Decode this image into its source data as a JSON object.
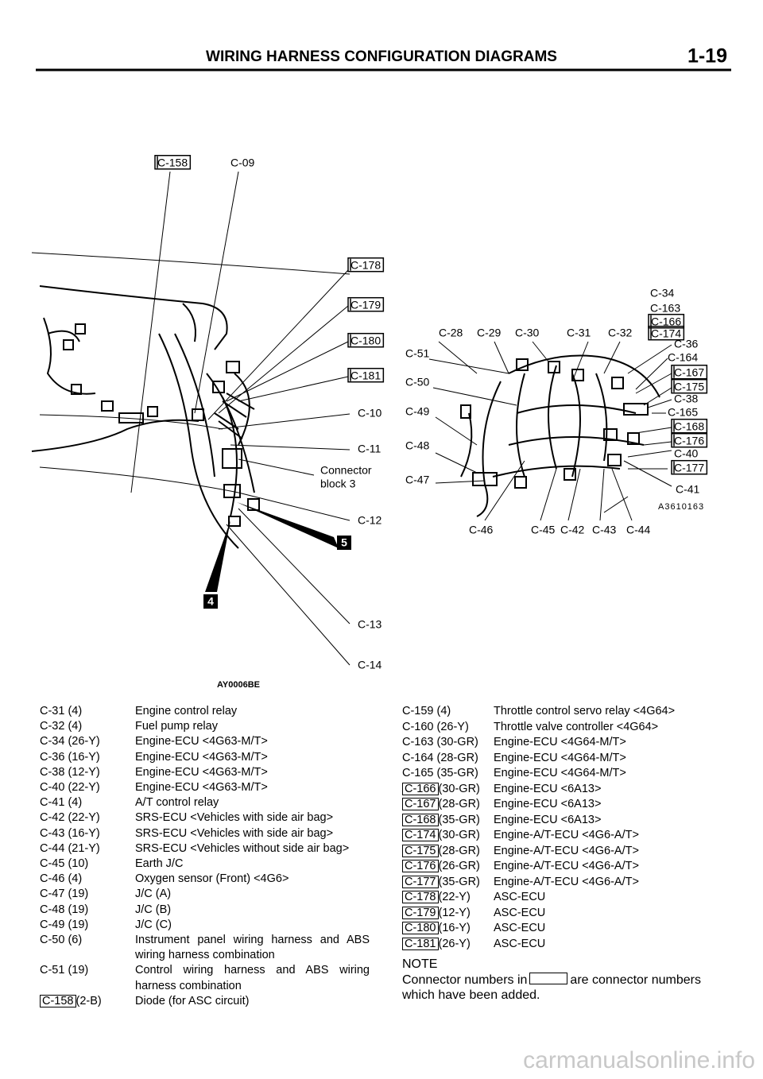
{
  "header": {
    "title": "WIRING HARNESS CONFIGURATION DIAGRAMS",
    "page": "1-19"
  },
  "diagram_left": {
    "labels": [
      {
        "text": "C-158",
        "boxed": true
      },
      {
        "text": "C-09"
      },
      {
        "text": "C-178",
        "boxed": true
      },
      {
        "text": "C-179",
        "boxed": true
      },
      {
        "text": "C-180",
        "boxed": true
      },
      {
        "text": "C-181",
        "boxed": true
      },
      {
        "text": "C-10"
      },
      {
        "text": "C-11"
      },
      {
        "text": "Connector"
      },
      {
        "text": "block 3"
      },
      {
        "text": "C-12"
      },
      {
        "text": "5"
      },
      {
        "text": "4"
      },
      {
        "text": "C-13"
      },
      {
        "text": "C-14"
      }
    ],
    "code": "AY0006BE"
  },
  "diagram_right": {
    "labels": [
      {
        "text": "C-34"
      },
      {
        "text": "C-163"
      },
      {
        "text": "C-166",
        "boxed": true
      },
      {
        "text": "C-174",
        "boxed": true
      },
      {
        "text": "C-28"
      },
      {
        "text": "C-29"
      },
      {
        "text": "C-30"
      },
      {
        "text": "C-31"
      },
      {
        "text": "C-32"
      },
      {
        "text": "C-36"
      },
      {
        "text": "C-164"
      },
      {
        "text": "C-167",
        "boxed": true
      },
      {
        "text": "C-175",
        "boxed": true
      },
      {
        "text": "C-38"
      },
      {
        "text": "C-165"
      },
      {
        "text": "C-168",
        "boxed": true
      },
      {
        "text": "C-176",
        "boxed": true
      },
      {
        "text": "C-40"
      },
      {
        "text": "C-177",
        "boxed": true
      },
      {
        "text": "C-41"
      },
      {
        "text": "C-51"
      },
      {
        "text": "C-50"
      },
      {
        "text": "C-49"
      },
      {
        "text": "C-48"
      },
      {
        "text": "C-47"
      },
      {
        "text": "C-46"
      },
      {
        "text": "C-45"
      },
      {
        "text": "C-42"
      },
      {
        "text": "C-43"
      },
      {
        "text": "C-44"
      }
    ],
    "code": "A3610163"
  },
  "lists": {
    "left": {
      "rows": [
        {
          "id": "C-31",
          "spec": "(4)",
          "desc": "Engine control relay"
        },
        {
          "id": "C-32",
          "spec": "(4)",
          "desc": "Fuel pump relay"
        },
        {
          "id": "C-34",
          "spec": "(26-Y)",
          "desc": "Engine-ECU <4G63-M/T>"
        },
        {
          "id": "C-36",
          "spec": "(16-Y)",
          "desc": "Engine-ECU <4G63-M/T>"
        },
        {
          "id": "C-38",
          "spec": "(12-Y)",
          "desc": "Engine-ECU <4G63-M/T>"
        },
        {
          "id": "C-40",
          "spec": "(22-Y)",
          "desc": "Engine-ECU <4G63-M/T>"
        },
        {
          "id": "C-41",
          "spec": "(4)",
          "desc": "A/T control relay"
        },
        {
          "id": "C-42",
          "spec": "(22-Y)",
          "desc": "SRS-ECU <Vehicles with side air bag>"
        },
        {
          "id": "C-43",
          "spec": "(16-Y)",
          "desc": "SRS-ECU <Vehicles with side air bag>"
        },
        {
          "id": "C-44",
          "spec": "(21-Y)",
          "desc": "SRS-ECU <Vehicles without side air bag>"
        },
        {
          "id": "C-45",
          "spec": "(10)",
          "desc": "Earth J/C"
        },
        {
          "id": "C-46",
          "spec": "(4)",
          "desc": "Oxygen sensor (Front) <4G6>"
        },
        {
          "id": "C-47",
          "spec": "(19)",
          "desc": "J/C (A)"
        },
        {
          "id": "C-48",
          "spec": "(19)",
          "desc": "J/C (B)"
        },
        {
          "id": "C-49",
          "spec": "(19)",
          "desc": "J/C (C)"
        },
        {
          "id": "C-50",
          "spec": "(6)",
          "desc": "Instrument panel wiring harness and ABS wiring harness combination"
        },
        {
          "id": "C-51",
          "spec": "(19)",
          "desc": "Control wiring harness and ABS wiring harness combination"
        },
        {
          "id": "C-158",
          "spec": "(2-B)",
          "desc": "Diode (for ASC circuit)",
          "boxed": true
        }
      ]
    },
    "right": {
      "rows": [
        {
          "id": "C-159",
          "spec": "(4)",
          "desc": "Throttle control servo relay <4G64>"
        },
        {
          "id": "C-160",
          "spec": "(26-Y)",
          "desc": "Throttle valve controller <4G64>"
        },
        {
          "id": "C-163",
          "spec": "(30-GR)",
          "desc": "Engine-ECU <4G64-M/T>"
        },
        {
          "id": "C-164",
          "spec": "(28-GR)",
          "desc": "Engine-ECU <4G64-M/T>"
        },
        {
          "id": "C-165",
          "spec": "(35-GR)",
          "desc": "Engine-ECU <4G64-M/T>"
        },
        {
          "id": "C-166",
          "spec": "(30-GR)",
          "desc": "Engine-ECU <6A13>",
          "boxed": true
        },
        {
          "id": "C-167",
          "spec": "(28-GR)",
          "desc": "Engine-ECU <6A13>",
          "boxed": true
        },
        {
          "id": "C-168",
          "spec": "(35-GR)",
          "desc": "Engine-ECU <6A13>",
          "boxed": true
        },
        {
          "id": "C-174",
          "spec": "(30-GR)",
          "desc": "Engine-A/T-ECU <4G6-A/T>",
          "boxed": true
        },
        {
          "id": "C-175",
          "spec": "(28-GR)",
          "desc": "Engine-A/T-ECU <4G6-A/T>",
          "boxed": true
        },
        {
          "id": "C-176",
          "spec": "(26-GR)",
          "desc": "Engine-A/T-ECU <4G6-A/T>",
          "boxed": true
        },
        {
          "id": "C-177",
          "spec": "(35-GR)",
          "desc": "Engine-A/T-ECU <4G6-A/T>",
          "boxed": true
        },
        {
          "id": "C-178",
          "spec": "(22-Y)",
          "desc": "ASC-ECU",
          "boxed": true
        },
        {
          "id": "C-179",
          "spec": "(12-Y)",
          "desc": "ASC-ECU",
          "boxed": true
        },
        {
          "id": "C-180",
          "spec": "(16-Y)",
          "desc": "ASC-ECU",
          "boxed": true
        },
        {
          "id": "C-181",
          "spec": "(26-Y)",
          "desc": "ASC-ECU",
          "boxed": true
        }
      ]
    }
  },
  "note": {
    "heading": "NOTE",
    "text_before": "Connector numbers in",
    "text_after": "are connector numbers which have been added."
  },
  "watermark": "carmanualsonline.info"
}
